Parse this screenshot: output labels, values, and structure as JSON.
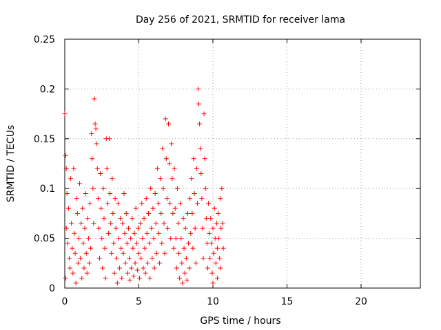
{
  "chart_data": {
    "type": "scatter",
    "title": "Day 256 of 2021, SRMTID for receiver lama",
    "xlabel": "GPS time / hours",
    "ylabel": "SRMTID / TECUs",
    "xlim": [
      0,
      24
    ],
    "ylim": [
      0,
      0.25
    ],
    "xticks": [
      0,
      5,
      10,
      15,
      20
    ],
    "xtick_labels": [
      "0",
      "5",
      "10",
      "15",
      "20"
    ],
    "yticks": [
      0,
      0.05,
      0.1,
      0.15,
      0.2,
      0.25
    ],
    "ytick_labels": [
      "0",
      "0.05",
      "0.1",
      "0.15",
      "0.2",
      "0.25"
    ],
    "grid": true,
    "marker": "+",
    "colors": {
      "points": "#ff0000",
      "grid": "#a0a0a0",
      "axes": "#000000"
    },
    "series": [
      {
        "name": "SRMTID",
        "points": [
          [
            0.0,
            0.175
          ],
          [
            0.05,
            0.133
          ],
          [
            0.1,
            0.12
          ],
          [
            0.15,
            0.095
          ],
          [
            0.1,
            0.06
          ],
          [
            0.2,
            0.045
          ],
          [
            0.3,
            0.03
          ],
          [
            0.05,
            0.01
          ],
          [
            0.25,
            0.08
          ],
          [
            0.35,
            0.02
          ],
          [
            0.4,
            0.11
          ],
          [
            0.45,
            0.065
          ],
          [
            0.5,
            0.04
          ],
          [
            0.55,
            0.015
          ],
          [
            0.6,
            0.12
          ],
          [
            0.65,
            0.055
          ],
          [
            0.7,
            0.035
          ],
          [
            0.75,
            0.005
          ],
          [
            0.8,
            0.09
          ],
          [
            0.85,
            0.075
          ],
          [
            0.9,
            0.025
          ],
          [
            0.95,
            0.05
          ],
          [
            1.0,
            0.105
          ],
          [
            1.05,
            0.03
          ],
          [
            1.1,
            0.065
          ],
          [
            1.15,
            0.01
          ],
          [
            1.2,
            0.08
          ],
          [
            1.25,
            0.045
          ],
          [
            1.3,
            0.02
          ],
          [
            1.35,
            0.06
          ],
          [
            1.4,
            0.095
          ],
          [
            1.45,
            0.035
          ],
          [
            1.5,
            0.015
          ],
          [
            1.55,
            0.07
          ],
          [
            1.6,
            0.05
          ],
          [
            1.65,
            0.025
          ],
          [
            1.7,
            0.085
          ],
          [
            1.75,
            0.04
          ],
          [
            1.8,
            0.155
          ],
          [
            1.85,
            0.13
          ],
          [
            1.9,
            0.1
          ],
          [
            1.95,
            0.065
          ],
          [
            2.0,
            0.19
          ],
          [
            2.05,
            0.165
          ],
          [
            2.1,
            0.16
          ],
          [
            2.15,
            0.145
          ],
          [
            2.2,
            0.12
          ],
          [
            2.25,
            0.09
          ],
          [
            2.3,
            0.06
          ],
          [
            2.35,
            0.03
          ],
          [
            2.4,
            0.115
          ],
          [
            2.45,
            0.08
          ],
          [
            2.5,
            0.05
          ],
          [
            2.55,
            0.02
          ],
          [
            2.6,
            0.1
          ],
          [
            2.65,
            0.07
          ],
          [
            2.7,
            0.04
          ],
          [
            2.75,
            0.01
          ],
          [
            2.8,
            0.15
          ],
          [
            2.85,
            0.12
          ],
          [
            2.9,
            0.085
          ],
          [
            2.95,
            0.055
          ],
          [
            3.0,
            0.15
          ],
          [
            3.05,
            0.095
          ],
          [
            3.1,
            0.065
          ],
          [
            3.15,
            0.035
          ],
          [
            3.2,
            0.11
          ],
          [
            3.25,
            0.075
          ],
          [
            3.3,
            0.045
          ],
          [
            3.35,
            0.015
          ],
          [
            3.4,
            0.09
          ],
          [
            3.45,
            0.06
          ],
          [
            3.5,
            0.03
          ],
          [
            3.55,
            0.005
          ],
          [
            3.6,
            0.085
          ],
          [
            3.65,
            0.05
          ],
          [
            3.7,
            0.02
          ],
          [
            3.75,
            0.07
          ],
          [
            3.8,
            0.04
          ],
          [
            3.85,
            0.01
          ],
          [
            3.9,
            0.065
          ],
          [
            3.95,
            0.035
          ],
          [
            4.0,
            0.095
          ],
          [
            4.05,
            0.055
          ],
          [
            4.1,
            0.025
          ],
          [
            4.15,
            0.075
          ],
          [
            4.2,
            0.045
          ],
          [
            4.25,
            0.015
          ],
          [
            4.3,
            0.06
          ],
          [
            4.35,
            0.03
          ],
          [
            4.4,
            0.008
          ],
          [
            4.45,
            0.05
          ],
          [
            4.5,
            0.02
          ],
          [
            4.55,
            0.07
          ],
          [
            4.6,
            0.04
          ],
          [
            4.65,
            0.012
          ],
          [
            4.7,
            0.055
          ],
          [
            4.75,
            0.025
          ],
          [
            4.8,
            0.08
          ],
          [
            4.85,
            0.045
          ],
          [
            4.9,
            0.018
          ],
          [
            4.95,
            0.06
          ],
          [
            5.0,
            0.035
          ],
          [
            5.05,
            0.01
          ],
          [
            5.1,
            0.065
          ],
          [
            5.15,
            0.03
          ],
          [
            5.2,
            0.085
          ],
          [
            5.25,
            0.05
          ],
          [
            5.3,
            0.02
          ],
          [
            5.35,
            0.07
          ],
          [
            5.4,
            0.04
          ],
          [
            5.45,
            0.015
          ],
          [
            5.5,
            0.09
          ],
          [
            5.55,
            0.055
          ],
          [
            5.6,
            0.025
          ],
          [
            5.65,
            0.075
          ],
          [
            5.7,
            0.045
          ],
          [
            5.75,
            0.01
          ],
          [
            5.8,
            0.1
          ],
          [
            5.85,
            0.06
          ],
          [
            5.9,
            0.03
          ],
          [
            5.95,
            0.08
          ],
          [
            6.0,
            0.05
          ],
          [
            6.05,
            0.02
          ],
          [
            6.1,
            0.095
          ],
          [
            6.15,
            0.065
          ],
          [
            6.2,
            0.035
          ],
          [
            6.25,
            0.12
          ],
          [
            6.3,
            0.085
          ],
          [
            6.35,
            0.055
          ],
          [
            6.4,
            0.025
          ],
          [
            6.45,
            0.11
          ],
          [
            6.5,
            0.075
          ],
          [
            6.55,
            0.045
          ],
          [
            6.6,
            0.14
          ],
          [
            6.65,
            0.1
          ],
          [
            6.7,
            0.065
          ],
          [
            6.75,
            0.035
          ],
          [
            6.8,
            0.17
          ],
          [
            6.85,
            0.13
          ],
          [
            6.9,
            0.09
          ],
          [
            6.95,
            0.06
          ],
          [
            7.0,
            0.165
          ],
          [
            7.05,
            0.125
          ],
          [
            7.1,
            0.085
          ],
          [
            7.15,
            0.05
          ],
          [
            7.2,
            0.145
          ],
          [
            7.25,
            0.11
          ],
          [
            7.3,
            0.075
          ],
          [
            7.35,
            0.04
          ],
          [
            7.4,
            0.12
          ],
          [
            7.45,
            0.08
          ],
          [
            7.5,
            0.05
          ],
          [
            7.55,
            0.02
          ],
          [
            7.6,
            0.1
          ],
          [
            7.65,
            0.065
          ],
          [
            7.7,
            0.035
          ],
          [
            7.75,
            0.01
          ],
          [
            7.8,
            0.085
          ],
          [
            7.85,
            0.05
          ],
          [
            7.9,
            0.025
          ],
          [
            7.95,
            0.005
          ],
          [
            8.0,
            0.07
          ],
          [
            8.05,
            0.04
          ],
          [
            8.1,
            0.015
          ],
          [
            8.15,
            0.06
          ],
          [
            8.2,
            0.03
          ],
          [
            8.25,
            0.008
          ],
          [
            8.3,
            0.075
          ],
          [
            8.35,
            0.045
          ],
          [
            8.4,
            0.02
          ],
          [
            8.45,
            0.09
          ],
          [
            8.5,
            0.055
          ],
          [
            8.55,
            0.11
          ],
          [
            8.6,
            0.075
          ],
          [
            8.65,
            0.04
          ],
          [
            8.7,
            0.13
          ],
          [
            8.75,
            0.095
          ],
          [
            8.8,
            0.06
          ],
          [
            8.85,
            0.025
          ],
          [
            8.9,
            0.12
          ],
          [
            8.95,
            0.085
          ],
          [
            9.0,
            0.2
          ],
          [
            9.05,
            0.185
          ],
          [
            9.1,
            0.165
          ],
          [
            9.15,
            0.14
          ],
          [
            9.2,
            0.115
          ],
          [
            9.25,
            0.09
          ],
          [
            9.3,
            0.06
          ],
          [
            9.35,
            0.03
          ],
          [
            9.4,
            0.175
          ],
          [
            9.45,
            0.13
          ],
          [
            9.5,
            0.1
          ],
          [
            9.55,
            0.07
          ],
          [
            9.6,
            0.045
          ],
          [
            9.65,
            0.02
          ],
          [
            9.7,
            0.085
          ],
          [
            9.75,
            0.055
          ],
          [
            9.8,
            0.03
          ],
          [
            9.85,
            0.07
          ],
          [
            9.9,
            0.045
          ],
          [
            9.95,
            0.015
          ],
          [
            10.0,
            0.06
          ],
          [
            10.05,
            0.035
          ],
          [
            10.1,
            0.08
          ],
          [
            10.15,
            0.05
          ],
          [
            10.2,
            0.025
          ],
          [
            10.25,
            0.065
          ],
          [
            10.3,
            0.04
          ],
          [
            10.35,
            0.075
          ],
          [
            10.4,
            0.05
          ],
          [
            10.45,
            0.03
          ],
          [
            10.5,
            0.09
          ],
          [
            10.55,
            0.06
          ],
          [
            10.6,
            0.1
          ],
          [
            10.65,
            0.065
          ],
          [
            10.7,
            0.04
          ],
          [
            10.5,
            0.02
          ],
          [
            10.3,
            0.01
          ],
          [
            10.0,
            0.005
          ]
        ]
      }
    ]
  }
}
